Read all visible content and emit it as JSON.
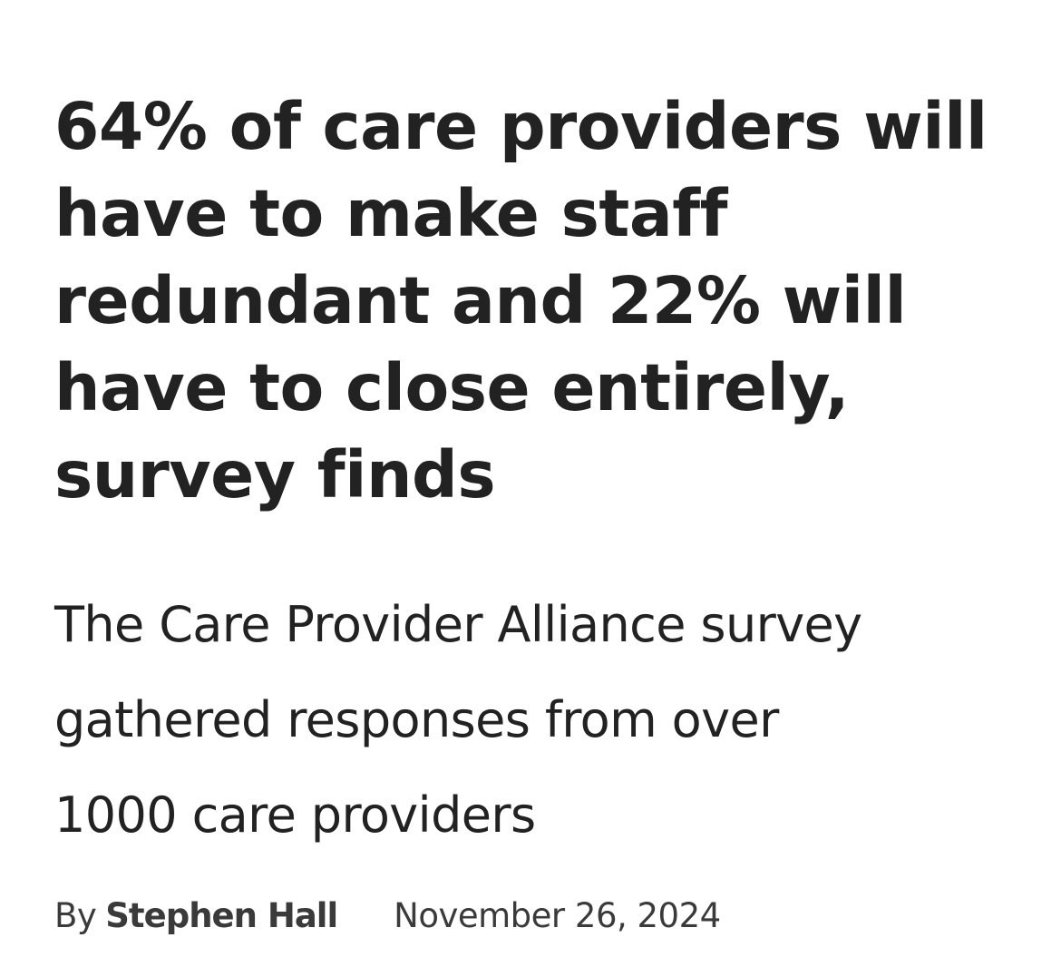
{
  "article": {
    "headline_lines": [
      "64% of care providers will",
      "have to make staff",
      "redundant and 22% will",
      "have to close entirely,",
      "survey finds"
    ],
    "standfirst_lines": [
      "The Care Provider Alliance survey",
      "gathered responses from over",
      "1000 care providers"
    ],
    "byline": {
      "prefix": "By",
      "author": "Stephen Hall",
      "date": "November 26, 2024"
    }
  }
}
